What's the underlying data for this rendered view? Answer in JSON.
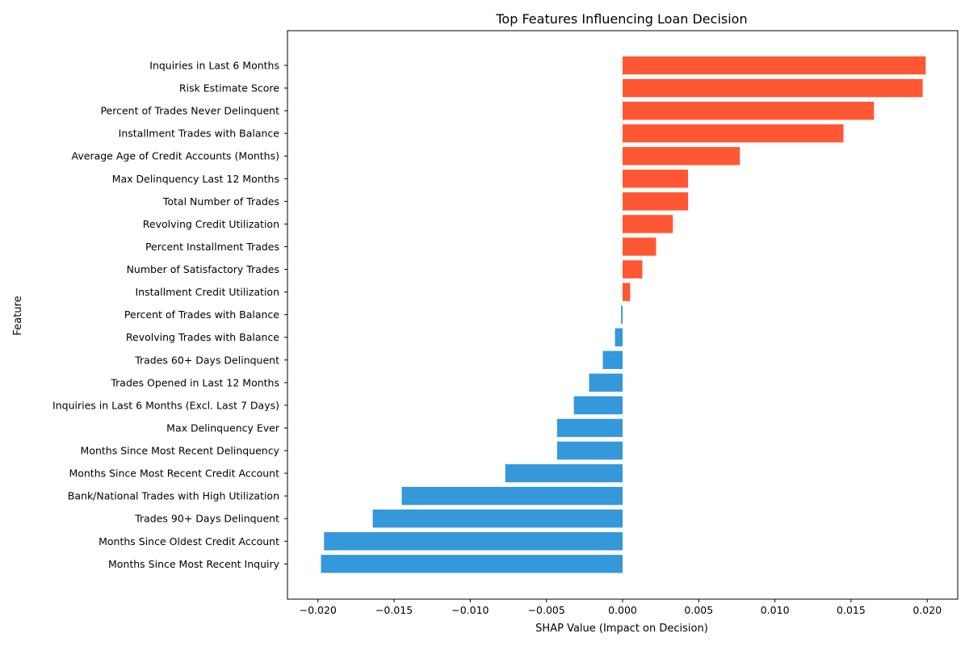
{
  "chart_data": {
    "type": "bar",
    "orientation": "horizontal",
    "title": "Top Features Influencing Loan Decision",
    "xlabel": "SHAP Value (Impact on Decision)",
    "ylabel": "Feature",
    "xlim": [
      -0.022,
      0.022
    ],
    "xticks": [
      "−0.020",
      "−0.015",
      "−0.010",
      "−0.005",
      "0.000",
      "0.005",
      "0.010",
      "0.015",
      "0.020"
    ],
    "xtick_values": [
      -0.02,
      -0.015,
      -0.01,
      -0.005,
      0.0,
      0.005,
      0.01,
      0.015,
      0.02
    ],
    "grid": false,
    "colors": {
      "positive": "#ff5733",
      "negative": "#3498db"
    },
    "categories": [
      "Inquiries in Last 6 Months",
      "Risk Estimate Score",
      "Percent of Trades Never Delinquent",
      "Installment Trades with Balance",
      "Average Age of Credit Accounts (Months)",
      "Max Delinquency Last 12 Months",
      "Total Number of Trades",
      "Revolving Credit Utilization",
      "Percent Installment Trades",
      "Number of Satisfactory Trades",
      "Installment Credit Utilization",
      "Percent of Trades with Balance",
      "Revolving Trades with Balance",
      "Trades 60+ Days Delinquent",
      "Trades Opened in Last 12 Months",
      "Inquiries in Last 6 Months (Excl. Last 7 Days)",
      "Max Delinquency Ever",
      "Months Since Most Recent Delinquency",
      "Months Since Most Recent Credit Account",
      "Bank/National Trades with High Utilization",
      "Trades 90+ Days Delinquent",
      "Months Since Oldest Credit Account",
      "Months Since Most Recent Inquiry"
    ],
    "values": [
      0.0199,
      0.0197,
      0.0165,
      0.0145,
      0.0077,
      0.0043,
      0.0043,
      0.0033,
      0.0022,
      0.0013,
      0.0005,
      -0.0001,
      -0.0005,
      -0.0013,
      -0.0022,
      -0.0032,
      -0.0043,
      -0.0043,
      -0.0077,
      -0.0145,
      -0.0164,
      -0.0196,
      -0.0198
    ]
  }
}
